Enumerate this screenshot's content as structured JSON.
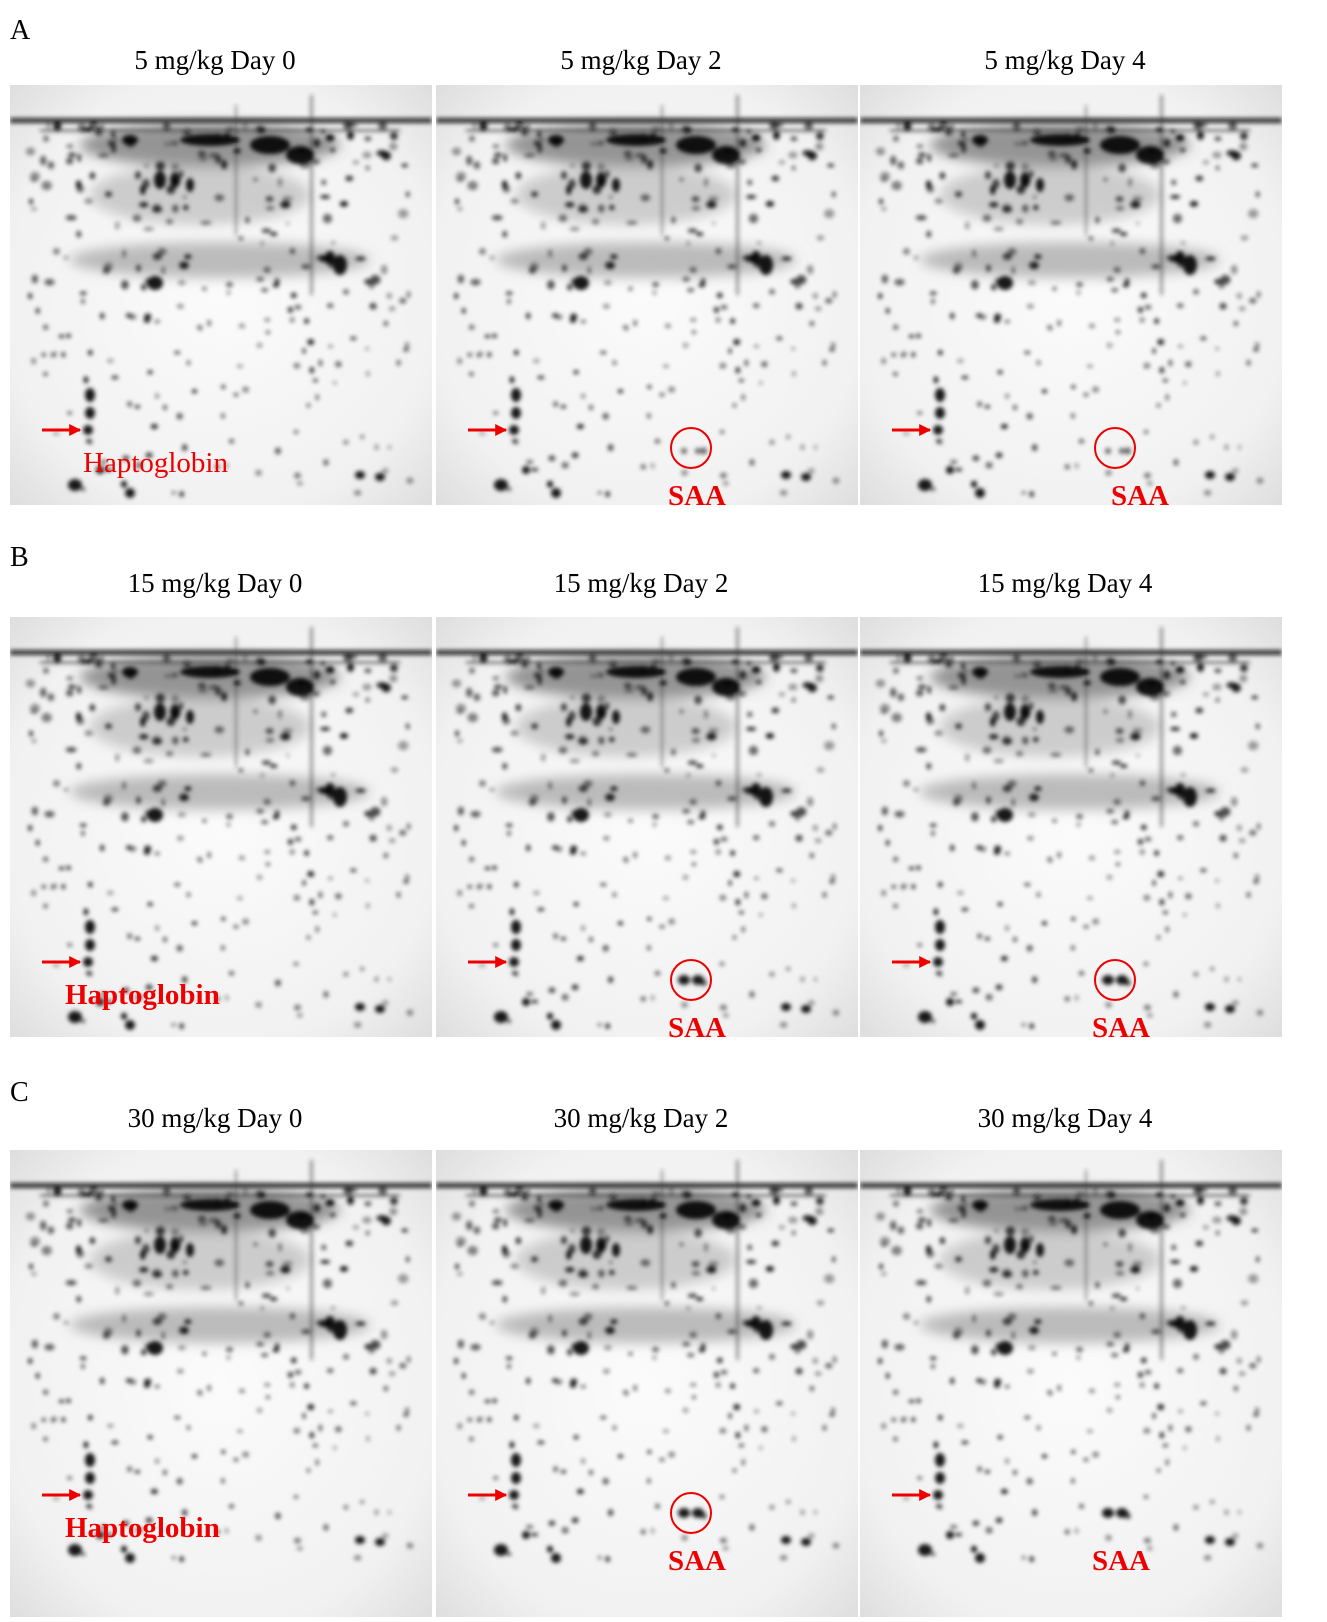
{
  "panels": [
    {
      "label": "A",
      "gels": [
        {
          "title": "5 mg/kg Day 0",
          "annotation": "Haptoglobin"
        },
        {
          "title": "5 mg/kg Day 2",
          "annotation": "SAA",
          "circled": true
        },
        {
          "title": "5 mg/kg Day 4",
          "annotation": "SAA",
          "circled": true
        }
      ]
    },
    {
      "label": "B",
      "gels": [
        {
          "title": "15 mg/kg Day 0",
          "annotation": "Haptoglobin"
        },
        {
          "title": "15 mg/kg Day 2",
          "annotation": "SAA",
          "circled": true
        },
        {
          "title": "15 mg/kg Day 4",
          "annotation": "SAA",
          "circled": true
        }
      ]
    },
    {
      "label": "C",
      "gels": [
        {
          "title": "30 mg/kg Day 0",
          "annotation": "Haptoglobin"
        },
        {
          "title": "30 mg/kg Day 2",
          "annotation": "SAA",
          "circled": true
        },
        {
          "title": "30 mg/kg Day 4",
          "annotation": "SAA",
          "circled": false
        }
      ]
    }
  ]
}
